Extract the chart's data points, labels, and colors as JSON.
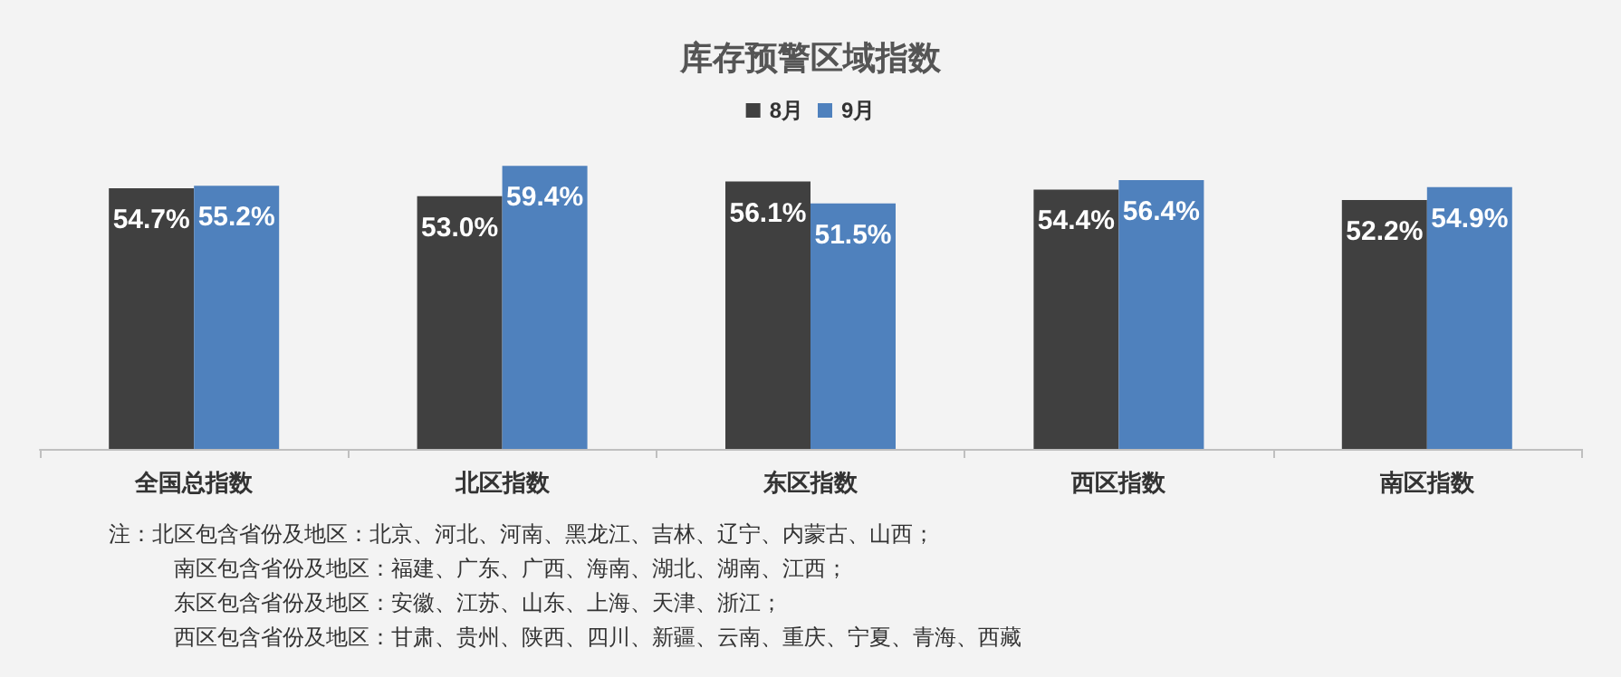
{
  "chart_data": {
    "type": "bar",
    "title": "库存预警区域指数",
    "categories": [
      "全国总指数",
      "北区指数",
      "东区指数",
      "西区指数",
      "南区指数"
    ],
    "series": [
      {
        "name": "8月",
        "color": "#404040",
        "values": [
          54.7,
          53.0,
          56.1,
          54.4,
          52.2
        ],
        "value_labels": [
          "54.7%",
          "53.0%",
          "56.1%",
          "54.4%",
          "52.2%"
        ]
      },
      {
        "name": "9月",
        "color": "#4f81bd",
        "values": [
          55.2,
          59.4,
          51.5,
          56.4,
          54.9
        ],
        "value_labels": [
          "55.2%",
          "59.4%",
          "51.5%",
          "56.4%",
          "54.9%"
        ]
      }
    ],
    "legend": "top",
    "annotations": [
      "注：北区包含省份及地区：北京、河北、河南、黑龙江、吉林、辽宁、内蒙古、山西；",
      "南区包含省份及地区：福建、广东、广西、海南、湖北、湖南、江西；",
      "东区包含省份及地区：安徽、江苏、山东、上海、天津、浙江；",
      "西区包含省份及地区：甘肃、贵州、陕西、四川、新疆、云南、重庆、宁夏、青海、西藏"
    ]
  }
}
